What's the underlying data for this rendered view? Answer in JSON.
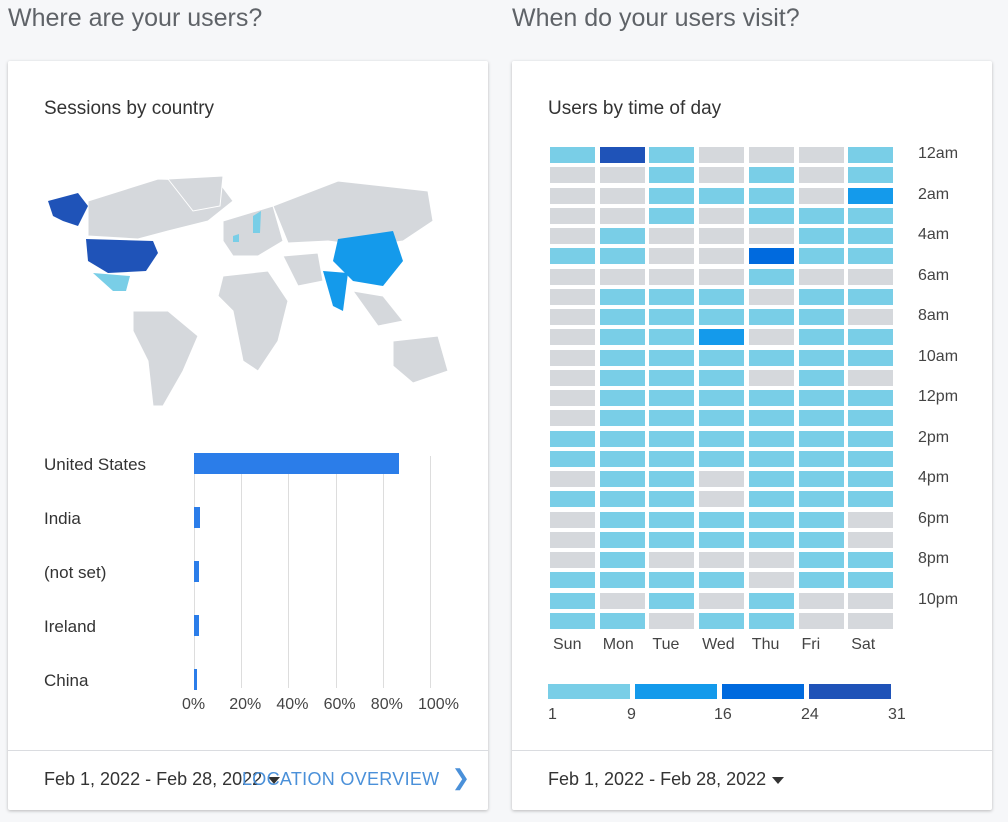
{
  "headers": {
    "left": "Where are your users?",
    "right": "When do your users visit?"
  },
  "country_card": {
    "title": "Sessions by country",
    "date_range": "Feb 1, 2022 - Feb 28, 2022",
    "link": "LOCATION OVERVIEW"
  },
  "time_card": {
    "title": "Users by time of day",
    "date_range": "Feb 1, 2022 - Feb 28, 2022"
  },
  "colors": {
    "gray": "#d5d8dc",
    "light": "#79cee7",
    "medium": "#149aeb",
    "dark": "#006ade",
    "darkest": "#1f53b8",
    "bar": "#2b7de9"
  },
  "chart_data": [
    {
      "type": "bar",
      "title": "Sessions by country",
      "categories": [
        "United States",
        "India",
        "(not set)",
        "Ireland",
        "China"
      ],
      "values": [
        87,
        2.5,
        2,
        2,
        1.3
      ],
      "xticks": [
        "0%",
        "20%",
        "40%",
        "60%",
        "80%",
        "100%"
      ],
      "xlim": [
        0,
        100
      ]
    },
    {
      "type": "heatmap",
      "title": "Users by time of day",
      "columns": [
        "Sun",
        "Mon",
        "Tue",
        "Wed",
        "Thu",
        "Fri",
        "Sat"
      ],
      "row_labels": [
        "12am",
        "2am",
        "4am",
        "6am",
        "8am",
        "10am",
        "12pm",
        "2pm",
        "4pm",
        "6pm",
        "8pm",
        "10pm"
      ],
      "legend": [
        "1",
        "9",
        "16",
        "24",
        "31"
      ],
      "levels": [
        [
          1,
          4,
          1,
          0,
          0,
          0,
          1
        ],
        [
          0,
          0,
          1,
          0,
          1,
          0,
          1
        ],
        [
          0,
          0,
          1,
          1,
          1,
          0,
          2
        ],
        [
          0,
          0,
          1,
          0,
          1,
          1,
          1
        ],
        [
          0,
          1,
          0,
          0,
          0,
          1,
          1
        ],
        [
          1,
          1,
          0,
          0,
          3,
          1,
          1
        ],
        [
          0,
          0,
          0,
          0,
          1,
          0,
          0
        ],
        [
          0,
          1,
          1,
          1,
          0,
          1,
          1
        ],
        [
          0,
          1,
          1,
          1,
          1,
          1,
          0
        ],
        [
          0,
          1,
          1,
          2,
          0,
          1,
          1
        ],
        [
          0,
          1,
          1,
          1,
          1,
          1,
          1
        ],
        [
          0,
          1,
          1,
          1,
          0,
          1,
          0
        ],
        [
          0,
          1,
          1,
          1,
          1,
          1,
          1
        ],
        [
          0,
          1,
          1,
          1,
          1,
          1,
          1
        ],
        [
          1,
          1,
          1,
          1,
          1,
          1,
          1
        ],
        [
          1,
          1,
          1,
          1,
          1,
          1,
          1
        ],
        [
          0,
          1,
          1,
          0,
          1,
          1,
          1
        ],
        [
          1,
          1,
          1,
          0,
          1,
          1,
          1
        ],
        [
          0,
          1,
          1,
          1,
          1,
          1,
          0
        ],
        [
          0,
          1,
          1,
          1,
          1,
          1,
          0
        ],
        [
          0,
          1,
          0,
          0,
          0,
          1,
          1
        ],
        [
          1,
          1,
          1,
          1,
          0,
          1,
          1
        ],
        [
          1,
          0,
          1,
          0,
          1,
          0,
          0
        ],
        [
          1,
          1,
          0,
          1,
          1,
          0,
          0
        ]
      ]
    }
  ]
}
